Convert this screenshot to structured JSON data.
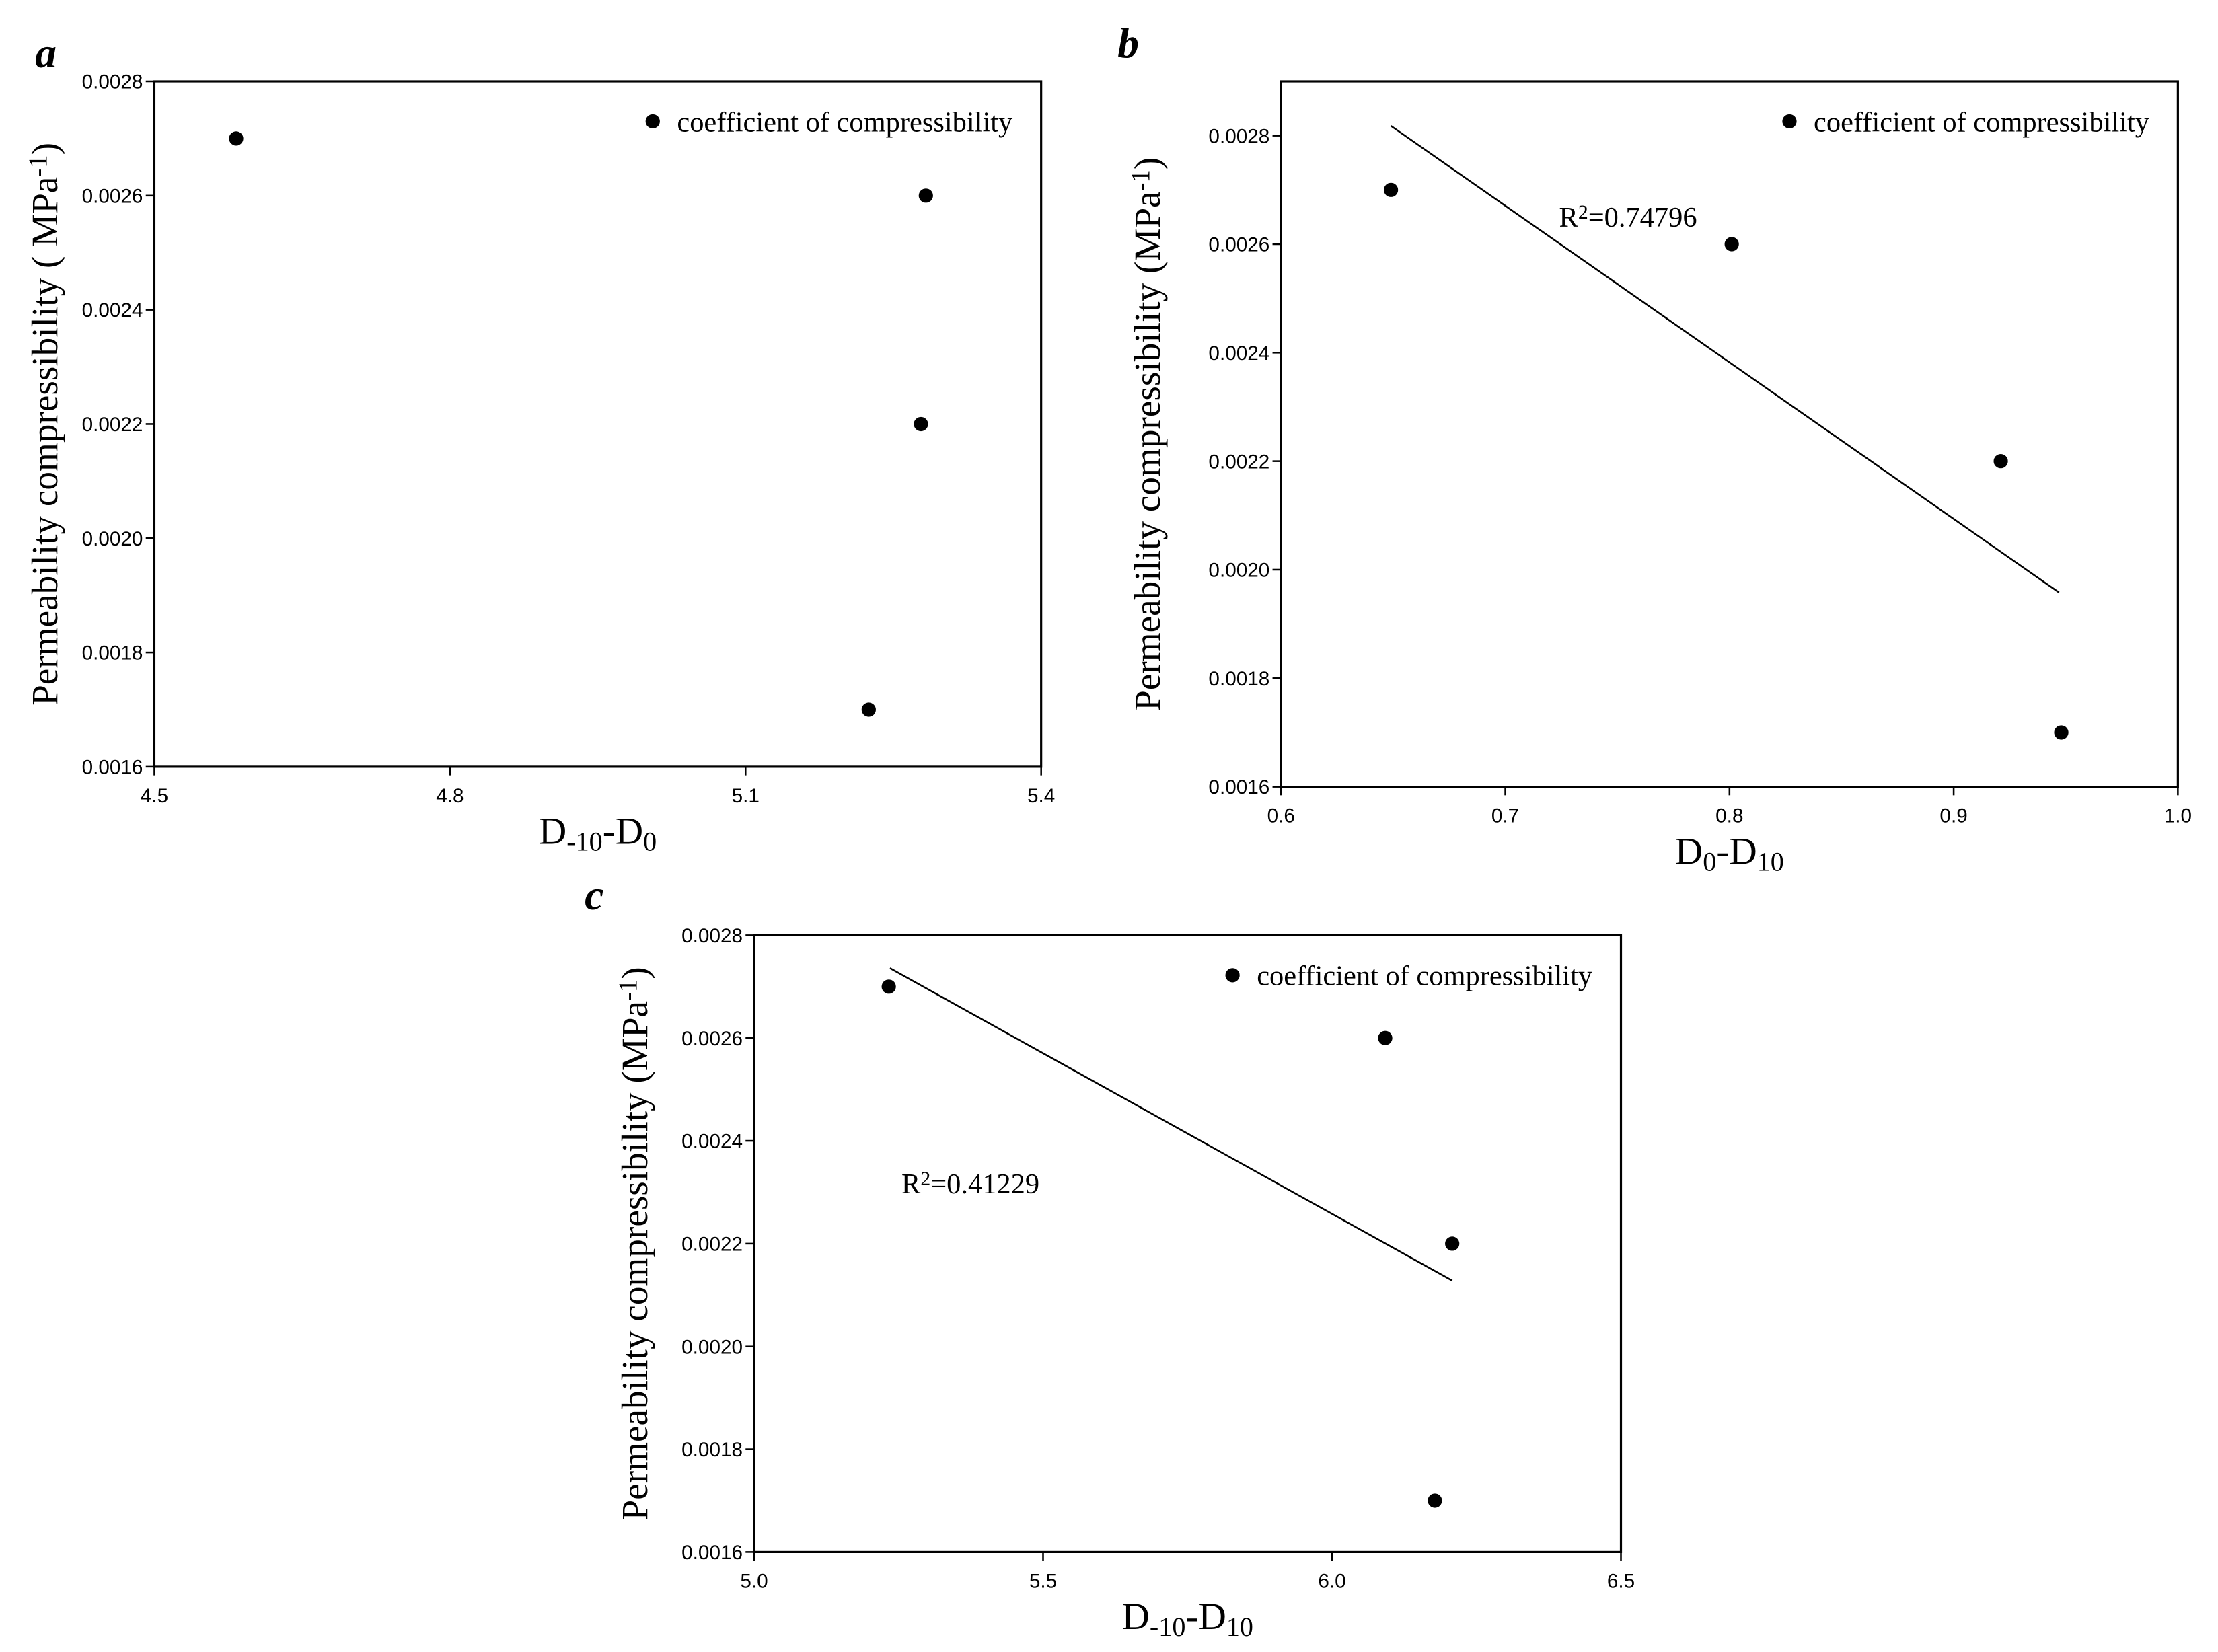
{
  "chart_data": [
    {
      "type": "scatter",
      "panel_label": "a",
      "x_label": [
        {
          "text": "D"
        },
        {
          "text": "-10",
          "script": "sub"
        },
        {
          "text": "-D"
        },
        {
          "text": "0",
          "script": "sub"
        }
      ],
      "y_label": [
        {
          "text": "Permeability compressibility ( MPa"
        },
        {
          "text": "-1",
          "script": "sup"
        },
        {
          "text": ")"
        }
      ],
      "xlim": [
        4.5,
        5.4
      ],
      "xticks": [
        4.5,
        4.8,
        5.1,
        5.4
      ],
      "ylim": [
        0.0016,
        0.0028
      ],
      "yticks": [
        0.0016,
        0.0018,
        {
          "value": 0.002,
          "label": "0.0020"
        },
        0.0022,
        0.0024,
        0.0026,
        0.0028
      ],
      "legend": "upper right",
      "series": [
        {
          "name": "coefficient of compressibility",
          "color": "#000000",
          "x": [
            4.583,
            5.283,
            5.278,
            5.225
          ],
          "values": [
            0.0027,
            0.0026,
            0.0022,
            0.0017
          ]
        }
      ]
    },
    {
      "type": "scatter",
      "panel_label": "b",
      "x_label": [
        {
          "text": "D"
        },
        {
          "text": "0",
          "script": "sub"
        },
        {
          "text": "-D"
        },
        {
          "text": "10",
          "script": "sub"
        }
      ],
      "y_label": [
        {
          "text": "Permeability compressibility (MPa"
        },
        {
          "text": "-1",
          "script": "sup"
        },
        {
          "text": ")"
        }
      ],
      "xlim": [
        0.6,
        1.0
      ],
      "xticks": [
        0.6,
        0.7,
        0.8,
        0.9,
        {
          "value": 1.0,
          "label": "1.0"
        }
      ],
      "ylim": [
        0.0016,
        0.0029
      ],
      "yticks": [
        0.0016,
        0.0018,
        {
          "value": 0.002,
          "label": "0.0020"
        },
        0.0022,
        0.0024,
        0.0026,
        0.0028
      ],
      "legend": "upper right",
      "annotation": [
        {
          "text": "R"
        },
        {
          "text": "2",
          "script": "sup"
        },
        {
          "text": "=0.74796"
        }
      ],
      "fit": {
        "color": "#000000",
        "x": [
          0.649,
          0.947
        ],
        "values": [
          0.002818,
          0.001958
        ]
      },
      "series": [
        {
          "name": "coefficient of compressibility",
          "color": "#000000",
          "x": [
            0.649,
            0.801,
            0.921,
            0.948
          ],
          "values": [
            0.0027,
            0.0026,
            0.0022,
            0.0017
          ]
        }
      ]
    },
    {
      "type": "scatter",
      "panel_label": "c",
      "x_label": [
        {
          "text": "D"
        },
        {
          "text": "-10",
          "script": "sub"
        },
        {
          "text": "-D"
        },
        {
          "text": "10",
          "script": "sub"
        }
      ],
      "y_label": [
        {
          "text": "Permeability compressibility (MPa"
        },
        {
          "text": "-1",
          "script": "sup"
        },
        {
          "text": ")"
        }
      ],
      "xlim": [
        5.0,
        6.5
      ],
      "xticks": [
        {
          "value": 5.0,
          "label": "5.0"
        },
        5.5,
        {
          "value": 6.0,
          "label": "6.0"
        },
        6.5
      ],
      "ylim": [
        0.0016,
        0.0028
      ],
      "yticks": [
        0.0016,
        0.0018,
        {
          "value": 0.002,
          "label": "0.0020"
        },
        0.0022,
        0.0024,
        0.0026,
        0.0028
      ],
      "legend": "upper right",
      "annotation": [
        {
          "text": "R"
        },
        {
          "text": "2",
          "script": "sup"
        },
        {
          "text": "=0.41229"
        }
      ],
      "fit": {
        "color": "#000000",
        "x": [
          5.235,
          6.208
        ],
        "values": [
          0.002736,
          0.002128
        ]
      },
      "series": [
        {
          "name": "coefficient of compressibility",
          "color": "#000000",
          "x": [
            5.233,
            6.092,
            6.208,
            6.178
          ],
          "values": [
            0.0027,
            0.0026,
            0.0022,
            0.0017
          ]
        }
      ]
    }
  ]
}
